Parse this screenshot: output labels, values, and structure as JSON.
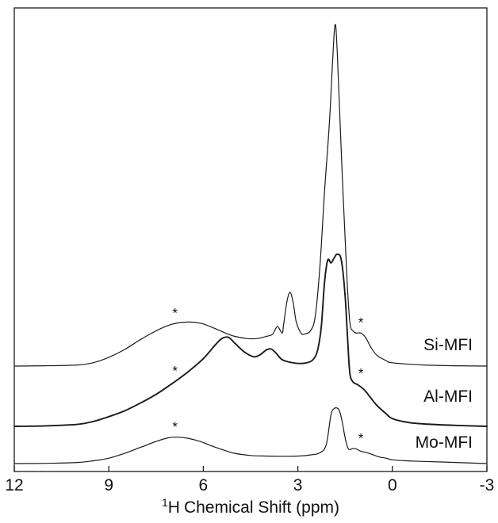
{
  "chart_data": {
    "type": "line",
    "xlabel": "Chemical Shift (ppm)",
    "xlabel_superscript": "1",
    "xlabel_nucleus": "H",
    "xlim": [
      12,
      -3
    ],
    "x_reversed": true,
    "xticks": [
      12,
      9,
      6,
      3,
      0,
      -3
    ],
    "y_axis": "arbitrary intensity (no scale shown)",
    "grid": false,
    "legend": "inline series labels at right",
    "series": [
      {
        "name": "Si-MFI",
        "points": [
          [
            12,
            0.0
          ],
          [
            11,
            0.003
          ],
          [
            10,
            0.01
          ],
          [
            9.5,
            0.03
          ],
          [
            9,
            0.08
          ],
          [
            8.5,
            0.15
          ],
          [
            8,
            0.24
          ],
          [
            7.5,
            0.32
          ],
          [
            7,
            0.38
          ],
          [
            6.5,
            0.4
          ],
          [
            6.1,
            0.39
          ],
          [
            5.7,
            0.35
          ],
          [
            5.3,
            0.3
          ],
          [
            5.0,
            0.27
          ],
          [
            4.6,
            0.25
          ],
          [
            4.3,
            0.25
          ],
          [
            4.0,
            0.27
          ],
          [
            3.8,
            0.29
          ],
          [
            3.65,
            0.36
          ],
          [
            3.5,
            0.3
          ],
          [
            3.45,
            0.38
          ],
          [
            3.35,
            0.58
          ],
          [
            3.25,
            0.67
          ],
          [
            3.15,
            0.58
          ],
          [
            3.05,
            0.4
          ],
          [
            2.9,
            0.3
          ],
          [
            2.8,
            0.29
          ],
          [
            2.6,
            0.32
          ],
          [
            2.45,
            0.45
          ],
          [
            2.3,
            0.9
          ],
          [
            2.15,
            1.6
          ],
          [
            2.0,
            2.2
          ],
          [
            1.9,
            2.75
          ],
          [
            1.82,
            3.1
          ],
          [
            1.75,
            2.85
          ],
          [
            1.6,
            1.8
          ],
          [
            1.45,
            0.85
          ],
          [
            1.35,
            0.4
          ],
          [
            1.25,
            0.32
          ],
          [
            1.15,
            0.3
          ],
          [
            1.0,
            0.3
          ],
          [
            0.85,
            0.26
          ],
          [
            0.7,
            0.18
          ],
          [
            0.5,
            0.1
          ],
          [
            0.2,
            0.05
          ],
          [
            0,
            0.03
          ],
          [
            -1,
            0.01
          ],
          [
            -2,
            0.003
          ],
          [
            -3,
            0.0
          ]
        ],
        "asterisks_ppm": [
          6.9,
          1.15
        ]
      },
      {
        "name": "Al-MFI",
        "points": [
          [
            12,
            0.0
          ],
          [
            11,
            0.005
          ],
          [
            10,
            0.02
          ],
          [
            9.5,
            0.05
          ],
          [
            9,
            0.1
          ],
          [
            8.5,
            0.16
          ],
          [
            8,
            0.24
          ],
          [
            7.5,
            0.33
          ],
          [
            7,
            0.44
          ],
          [
            6.5,
            0.56
          ],
          [
            6,
            0.7
          ],
          [
            5.6,
            0.85
          ],
          [
            5.4,
            0.91
          ],
          [
            5.2,
            0.92
          ],
          [
            5.0,
            0.86
          ],
          [
            4.7,
            0.77
          ],
          [
            4.4,
            0.72
          ],
          [
            4.2,
            0.74
          ],
          [
            4.0,
            0.79
          ],
          [
            3.85,
            0.8
          ],
          [
            3.7,
            0.76
          ],
          [
            3.5,
            0.69
          ],
          [
            3.2,
            0.66
          ],
          [
            2.9,
            0.65
          ],
          [
            2.6,
            0.67
          ],
          [
            2.45,
            0.72
          ],
          [
            2.35,
            0.82
          ],
          [
            2.25,
            1.05
          ],
          [
            2.15,
            1.5
          ],
          [
            2.05,
            1.72
          ],
          [
            1.95,
            1.69
          ],
          [
            1.85,
            1.74
          ],
          [
            1.75,
            1.78
          ],
          [
            1.62,
            1.72
          ],
          [
            1.5,
            1.35
          ],
          [
            1.42,
            0.9
          ],
          [
            1.35,
            0.55
          ],
          [
            1.25,
            0.46
          ],
          [
            1.1,
            0.43
          ],
          [
            0.9,
            0.38
          ],
          [
            0.7,
            0.3
          ],
          [
            0.5,
            0.22
          ],
          [
            0.2,
            0.13
          ],
          [
            0,
            0.08
          ],
          [
            -0.5,
            0.04
          ],
          [
            -1,
            0.025
          ],
          [
            -2,
            0.01
          ],
          [
            -3,
            0.0
          ]
        ],
        "asterisks_ppm": [
          6.9,
          1.15
        ]
      },
      {
        "name": "Mo-MFI",
        "points": [
          [
            12,
            0.0
          ],
          [
            11,
            0.005
          ],
          [
            10,
            0.02
          ],
          [
            9.5,
            0.05
          ],
          [
            9,
            0.1
          ],
          [
            8.5,
            0.19
          ],
          [
            8,
            0.3
          ],
          [
            7.5,
            0.41
          ],
          [
            7.1,
            0.48
          ],
          [
            6.8,
            0.49
          ],
          [
            6.5,
            0.47
          ],
          [
            6.1,
            0.41
          ],
          [
            5.7,
            0.32
          ],
          [
            5.3,
            0.24
          ],
          [
            5,
            0.19
          ],
          [
            4.5,
            0.15
          ],
          [
            4,
            0.14
          ],
          [
            3.5,
            0.135
          ],
          [
            3,
            0.14
          ],
          [
            2.6,
            0.16
          ],
          [
            2.3,
            0.2
          ],
          [
            2.1,
            0.35
          ],
          [
            1.95,
            0.9
          ],
          [
            1.85,
            1.02
          ],
          [
            1.75,
            1.03
          ],
          [
            1.68,
            0.98
          ],
          [
            1.6,
            0.8
          ],
          [
            1.5,
            0.48
          ],
          [
            1.42,
            0.3
          ],
          [
            1.35,
            0.26
          ],
          [
            1.25,
            0.28
          ],
          [
            1.15,
            0.27
          ],
          [
            1.0,
            0.23
          ],
          [
            0.8,
            0.2
          ],
          [
            0.6,
            0.16
          ],
          [
            0.4,
            0.12
          ],
          [
            0.2,
            0.1
          ],
          [
            0,
            0.07
          ],
          [
            -0.5,
            0.05
          ],
          [
            -1,
            0.04
          ],
          [
            -2,
            0.02
          ],
          [
            -3,
            0.0
          ]
        ],
        "asterisks_ppm": [
          6.9,
          1.15
        ]
      }
    ],
    "annotations": [
      "*"
    ]
  }
}
